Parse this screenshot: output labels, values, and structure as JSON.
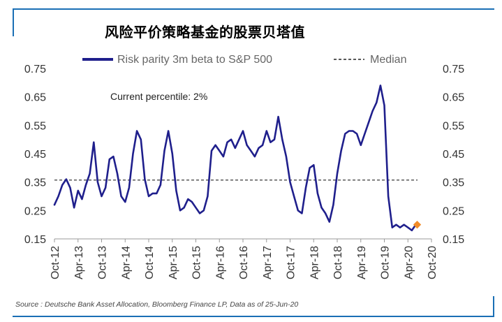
{
  "chart_data": {
    "type": "line",
    "title": "风险平价策略基金的股票贝塔值",
    "annotation": "Current percentile: 2%",
    "source": "Source : Deutsche Bank Asset Allocation, Bloomberg Finance LP, Data as of 25-Jun-20",
    "ylim": [
      0.15,
      0.75
    ],
    "y_ticks": [
      "0.75",
      "0.65",
      "0.55",
      "0.45",
      "0.35",
      "0.25",
      "0.15"
    ],
    "y_ticks_right": [
      "0.75",
      "0.65",
      "0.55",
      "0.45",
      "0.35",
      "0.25",
      "0.15"
    ],
    "x_ticks": [
      "Oct-12",
      "Apr-13",
      "Oct-13",
      "Apr-14",
      "Oct-14",
      "Apr-15",
      "Oct-15",
      "Apr-16",
      "Oct-16",
      "Apr-17",
      "Oct-17",
      "Apr-18",
      "Oct-18",
      "Apr-19",
      "Oct-19",
      "Apr-20",
      "Oct-20"
    ],
    "legend_placement": "top",
    "grid": false,
    "colors": {
      "series": "#1f1f8c",
      "median": "#222222",
      "marker": "#f28c28",
      "frame": "#1a6fb5"
    },
    "series": [
      {
        "name": "Risk parity 3m beta to S&P 500",
        "x": [
          "2012-10",
          "2012-11",
          "2012-12",
          "2013-01",
          "2013-02",
          "2013-03",
          "2013-04",
          "2013-05",
          "2013-06",
          "2013-07",
          "2013-08",
          "2013-09",
          "2013-10",
          "2013-11",
          "2013-12",
          "2014-01",
          "2014-02",
          "2014-03",
          "2014-04",
          "2014-05",
          "2014-06",
          "2014-07",
          "2014-08",
          "2014-09",
          "2014-10",
          "2014-11",
          "2014-12",
          "2015-01",
          "2015-02",
          "2015-03",
          "2015-04",
          "2015-05",
          "2015-06",
          "2015-07",
          "2015-08",
          "2015-09",
          "2015-10",
          "2015-11",
          "2015-12",
          "2016-01",
          "2016-02",
          "2016-03",
          "2016-04",
          "2016-05",
          "2016-06",
          "2016-07",
          "2016-08",
          "2016-09",
          "2016-10",
          "2016-11",
          "2016-12",
          "2017-01",
          "2017-02",
          "2017-03",
          "2017-04",
          "2017-05",
          "2017-06",
          "2017-07",
          "2017-08",
          "2017-09",
          "2017-10",
          "2017-11",
          "2017-12",
          "2018-01",
          "2018-02",
          "2018-03",
          "2018-04",
          "2018-05",
          "2018-06",
          "2018-07",
          "2018-08",
          "2018-09",
          "2018-10",
          "2018-11",
          "2018-12",
          "2019-01",
          "2019-02",
          "2019-03",
          "2019-04",
          "2019-05",
          "2019-06",
          "2019-07",
          "2019-08",
          "2019-09",
          "2019-10",
          "2019-11",
          "2019-12",
          "2020-01",
          "2020-02",
          "2020-03",
          "2020-04",
          "2020-05",
          "2020-06"
        ],
        "values": [
          0.27,
          0.3,
          0.34,
          0.36,
          0.33,
          0.26,
          0.32,
          0.29,
          0.34,
          0.38,
          0.49,
          0.35,
          0.3,
          0.33,
          0.43,
          0.44,
          0.38,
          0.3,
          0.28,
          0.33,
          0.45,
          0.53,
          0.5,
          0.36,
          0.3,
          0.31,
          0.31,
          0.34,
          0.46,
          0.53,
          0.45,
          0.32,
          0.25,
          0.26,
          0.29,
          0.28,
          0.26,
          0.24,
          0.25,
          0.3,
          0.46,
          0.48,
          0.46,
          0.44,
          0.49,
          0.5,
          0.47,
          0.5,
          0.53,
          0.48,
          0.46,
          0.44,
          0.47,
          0.48,
          0.53,
          0.49,
          0.5,
          0.58,
          0.5,
          0.44,
          0.35,
          0.3,
          0.25,
          0.24,
          0.33,
          0.4,
          0.41,
          0.31,
          0.26,
          0.24,
          0.21,
          0.27,
          0.38,
          0.46,
          0.52,
          0.53,
          0.53,
          0.52,
          0.48,
          0.52,
          0.56,
          0.6,
          0.63,
          0.69,
          0.62,
          0.3,
          0.19,
          0.2,
          0.19,
          0.2,
          0.19,
          0.18,
          0.2
        ]
      }
    ],
    "median": {
      "name": "Median",
      "value": 0.357
    },
    "last_point": {
      "x": "2020-06",
      "value": 0.2
    }
  }
}
